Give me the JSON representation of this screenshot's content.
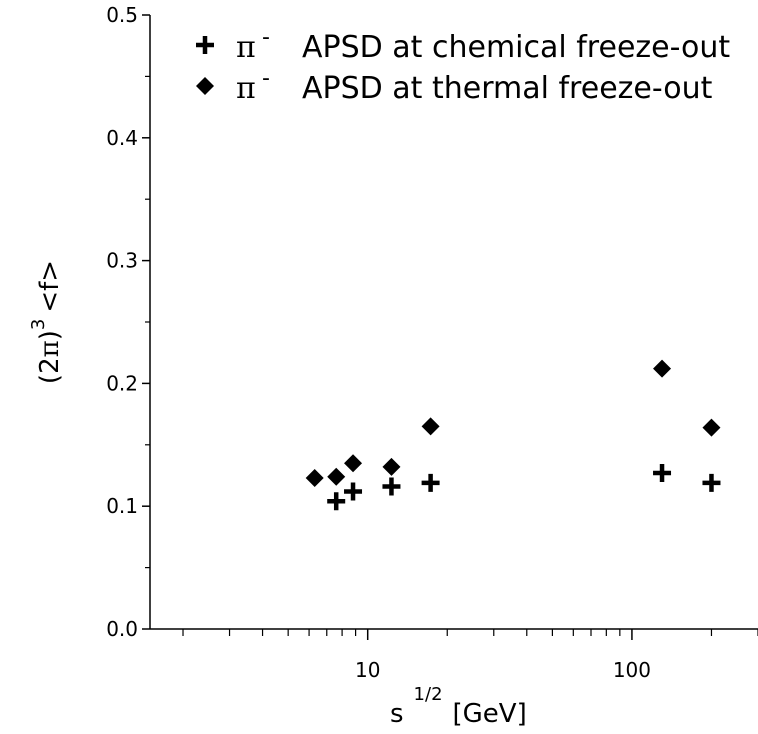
{
  "chart_data": {
    "type": "scatter",
    "x_scale": "log",
    "xlim": [
      1.5,
      300
    ],
    "ylim": [
      0.0,
      0.5
    ],
    "x_ticks_labeled": [
      10,
      100
    ],
    "x_tick_labels": [
      "10",
      "100"
    ],
    "y_ticks": [
      0.0,
      0.1,
      0.2,
      0.3,
      0.4,
      0.5
    ],
    "y_tick_labels": [
      "0.0",
      "0.1",
      "0.2",
      "0.3",
      "0.4",
      "0.5"
    ],
    "xlabel": {
      "base": "s",
      "sup": "1/2",
      "unit": "[GeV]"
    },
    "ylabel": {
      "pre": "(2",
      "pi": "π",
      "close": ")",
      "sup": "3",
      "post": "<f>"
    },
    "grid": false,
    "legend_position": "top-right",
    "series": [
      {
        "name": "APSD at chemical freeze-out",
        "particle": "π",
        "charge": "-",
        "marker": "plus",
        "color": "#000000",
        "points": [
          {
            "x": 7.6,
            "y": 0.104
          },
          {
            "x": 8.8,
            "y": 0.112
          },
          {
            "x": 12.3,
            "y": 0.116
          },
          {
            "x": 17.3,
            "y": 0.119
          },
          {
            "x": 130,
            "y": 0.127
          },
          {
            "x": 200,
            "y": 0.119
          }
        ]
      },
      {
        "name": "APSD at thermal freeze-out",
        "particle": "π",
        "charge": "-",
        "marker": "diamond",
        "color": "#000000",
        "points": [
          {
            "x": 6.3,
            "y": 0.123
          },
          {
            "x": 7.6,
            "y": 0.124
          },
          {
            "x": 8.8,
            "y": 0.135
          },
          {
            "x": 12.3,
            "y": 0.132
          },
          {
            "x": 17.3,
            "y": 0.165
          },
          {
            "x": 130,
            "y": 0.212
          },
          {
            "x": 200,
            "y": 0.164
          }
        ]
      }
    ]
  }
}
